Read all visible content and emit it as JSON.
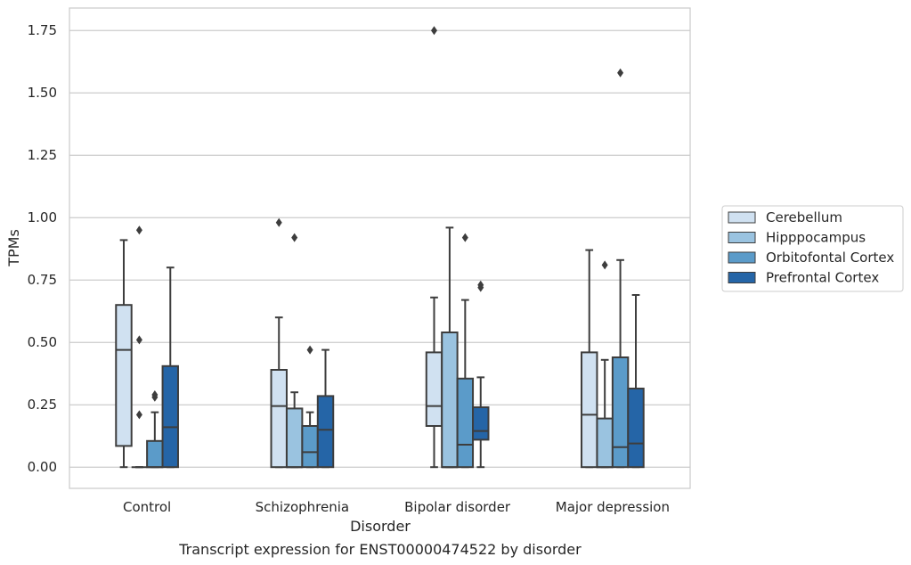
{
  "chart_data": {
    "type": "boxplot",
    "caption": "Transcript expression for ENST00000474522 by disorder",
    "xlabel": "Disorder",
    "ylabel": "TPMs",
    "ylim": [
      -0.085,
      1.84
    ],
    "yticks": [
      0.0,
      0.25,
      0.5,
      0.75,
      1.0,
      1.25,
      1.5,
      1.75
    ],
    "ytick_labels": [
      "0.00",
      "0.25",
      "0.50",
      "0.75",
      "1.00",
      "1.25",
      "1.50",
      "1.75"
    ],
    "grid": "horizontal",
    "legend_position": "right",
    "categories": [
      "Control",
      "Schizophrenia",
      "Bipolar disorder",
      "Major depression"
    ],
    "series": [
      {
        "name": "Cerebellum",
        "color": "#d0e1f1",
        "boxes": [
          {
            "whislo": 0.0,
            "q1": 0.085,
            "med": 0.47,
            "q3": 0.65,
            "whishi": 0.91,
            "fliers": []
          },
          {
            "whislo": 0.0,
            "q1": 0.0,
            "med": 0.245,
            "q3": 0.39,
            "whishi": 0.6,
            "fliers": [
              0.98
            ]
          },
          {
            "whislo": 0.0,
            "q1": 0.165,
            "med": 0.245,
            "q3": 0.46,
            "whishi": 0.68,
            "fliers": [
              1.75
            ]
          },
          {
            "whislo": 0.0,
            "q1": 0.0,
            "med": 0.21,
            "q3": 0.46,
            "whishi": 0.87,
            "fliers": []
          }
        ]
      },
      {
        "name": "Hipppocampus",
        "color": "#9ac3e0",
        "boxes": [
          {
            "whislo": 0.0,
            "q1": 0.0,
            "med": 0.0,
            "q3": 0.0,
            "whishi": 0.0,
            "fliers": [
              0.21,
              0.51,
              0.95
            ]
          },
          {
            "whislo": 0.0,
            "q1": 0.0,
            "med": 0.0,
            "q3": 0.235,
            "whishi": 0.3,
            "fliers": [
              0.92
            ]
          },
          {
            "whislo": 0.0,
            "q1": 0.0,
            "med": 0.0,
            "q3": 0.54,
            "whishi": 0.96,
            "fliers": []
          },
          {
            "whislo": 0.0,
            "q1": 0.0,
            "med": 0.0,
            "q3": 0.195,
            "whishi": 0.43,
            "fliers": [
              0.81
            ]
          }
        ]
      },
      {
        "name": "Orbitofontal Cortex",
        "color": "#5b9bc9",
        "boxes": [
          {
            "whislo": 0.0,
            "q1": 0.0,
            "med": 0.0,
            "q3": 0.105,
            "whishi": 0.22,
            "fliers": [
              0.28,
              0.29
            ]
          },
          {
            "whislo": 0.0,
            "q1": 0.0,
            "med": 0.06,
            "q3": 0.165,
            "whishi": 0.22,
            "fliers": [
              0.47
            ]
          },
          {
            "whislo": 0.0,
            "q1": 0.0,
            "med": 0.09,
            "q3": 0.355,
            "whishi": 0.67,
            "fliers": [
              0.92
            ]
          },
          {
            "whislo": 0.0,
            "q1": 0.0,
            "med": 0.08,
            "q3": 0.44,
            "whishi": 0.83,
            "fliers": [
              1.58
            ]
          }
        ]
      },
      {
        "name": "Prefrontal Cortex",
        "color": "#2565a7",
        "boxes": [
          {
            "whislo": 0.0,
            "q1": 0.0,
            "med": 0.16,
            "q3": 0.405,
            "whishi": 0.8,
            "fliers": []
          },
          {
            "whislo": 0.0,
            "q1": 0.0,
            "med": 0.15,
            "q3": 0.285,
            "whishi": 0.47,
            "fliers": []
          },
          {
            "whislo": 0.0,
            "q1": 0.11,
            "med": 0.145,
            "q3": 0.24,
            "whishi": 0.36,
            "fliers": [
              0.72,
              0.73
            ]
          },
          {
            "whislo": 0.0,
            "q1": 0.0,
            "med": 0.095,
            "q3": 0.315,
            "whishi": 0.69,
            "fliers": []
          }
        ]
      }
    ]
  }
}
